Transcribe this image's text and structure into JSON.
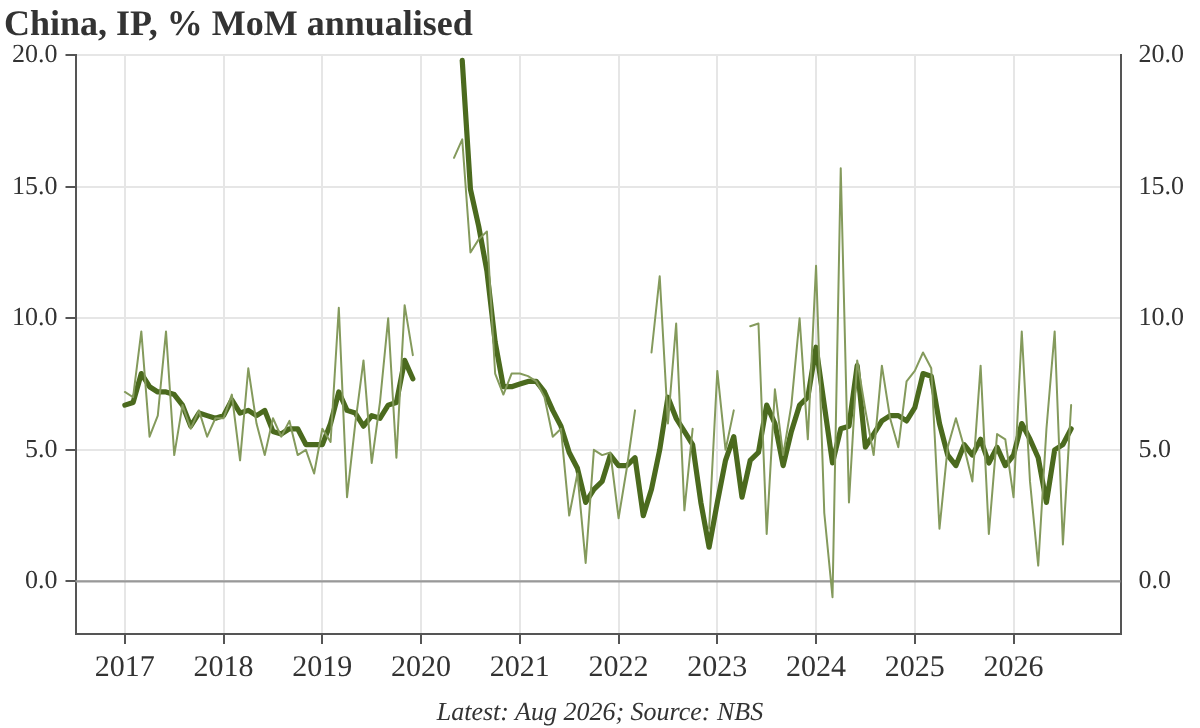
{
  "chart_data": {
    "type": "line",
    "title": "China, IP, % MoM annualised",
    "annotations": [
      "Latest: Aug 2026; Source: NBS"
    ],
    "x": [
      "2017-01",
      "2017-02",
      "2017-03",
      "2017-04",
      "2017-05",
      "2017-06",
      "2017-07",
      "2017-08",
      "2017-09",
      "2017-10",
      "2017-11",
      "2017-12",
      "2018-01",
      "2018-02",
      "2018-03",
      "2018-04",
      "2018-05",
      "2018-06",
      "2018-07",
      "2018-08",
      "2018-09",
      "2018-10",
      "2018-11",
      "2018-12",
      "2019-01",
      "2019-02",
      "2019-03",
      "2019-04",
      "2019-05",
      "2019-06",
      "2019-07",
      "2019-08",
      "2019-09",
      "2019-10",
      "2019-11",
      "2019-12",
      "2020-01",
      "2020-02",
      "2020-03",
      "2020-04",
      "2020-05",
      "2020-06",
      "2020-07",
      "2020-08",
      "2020-09",
      "2020-10",
      "2020-11",
      "2020-12",
      "2021-01",
      "2021-02",
      "2021-03",
      "2021-04",
      "2021-05",
      "2021-06",
      "2021-07",
      "2021-08",
      "2021-09",
      "2021-10",
      "2021-11",
      "2021-12",
      "2022-01",
      "2022-02",
      "2022-03",
      "2022-04",
      "2022-05",
      "2022-06",
      "2022-07",
      "2022-08",
      "2022-09",
      "2022-10",
      "2022-11",
      "2022-12",
      "2023-01",
      "2023-02",
      "2023-03",
      "2023-04",
      "2023-05",
      "2023-06",
      "2023-07",
      "2023-08",
      "2023-09",
      "2023-10",
      "2023-11",
      "2023-12",
      "2024-01",
      "2024-02",
      "2024-03",
      "2024-04",
      "2024-05",
      "2024-06",
      "2024-07",
      "2024-08",
      "2024-09",
      "2024-10",
      "2024-11",
      "2024-12",
      "2025-01",
      "2025-02",
      "2025-03",
      "2025-04",
      "2025-05",
      "2025-06",
      "2025-07",
      "2025-08",
      "2025-09",
      "2025-10",
      "2025-11",
      "2025-12",
      "2026-01",
      "2026-02",
      "2026-03",
      "2026-04",
      "2026-05",
      "2026-06",
      "2026-07",
      "2026-08"
    ],
    "series": [
      {
        "color": "#849a5c",
        "values": [
          7.2,
          7.0,
          9.5,
          5.5,
          6.3,
          9.5,
          4.8,
          6.7,
          5.8,
          6.5,
          5.5,
          6.2,
          6.2,
          7.1,
          4.6,
          8.1,
          6.0,
          4.8,
          6.2,
          5.5,
          6.1,
          4.8,
          5.0,
          4.1,
          5.8,
          5.3,
          10.4,
          3.2,
          6.0,
          8.4,
          4.5,
          6.8,
          10.0,
          4.7,
          10.5,
          8.6,
          null,
          null,
          null,
          null,
          16.1,
          16.8,
          12.5,
          13.0,
          13.3,
          7.9,
          7.1,
          7.9,
          7.9,
          7.8,
          7.6,
          7.0,
          5.5,
          5.8,
          2.5,
          4.1,
          0.7,
          5.0,
          4.8,
          4.9,
          2.4,
          4.3,
          6.5,
          null,
          8.7,
          11.6,
          6.0,
          9.8,
          2.7,
          5.8,
          null,
          2.0,
          8.0,
          5.0,
          6.5,
          null,
          9.7,
          9.8,
          1.8,
          7.3,
          4.8,
          6.7,
          10.0,
          5.4,
          12.0,
          2.6,
          -0.6,
          15.7,
          3.0,
          8.4,
          6.5,
          4.8,
          8.2,
          6.2,
          5.1,
          7.6,
          8.0,
          8.7,
          8.1,
          2.0,
          5.1,
          6.2,
          5.1,
          3.8,
          8.2,
          1.8,
          5.6,
          5.4,
          3.2,
          9.5,
          3.8,
          0.6,
          5.8,
          9.5,
          1.4,
          6.7
        ]
      },
      {
        "color": "#4b6a1e",
        "values": [
          6.7,
          6.8,
          7.9,
          7.4,
          7.2,
          7.2,
          7.1,
          6.7,
          5.9,
          6.4,
          6.3,
          6.2,
          6.3,
          6.9,
          6.4,
          6.5,
          6.3,
          6.5,
          5.7,
          5.6,
          5.8,
          5.8,
          5.2,
          5.2,
          5.2,
          6.0,
          7.2,
          6.5,
          6.4,
          5.9,
          6.3,
          6.2,
          6.7,
          6.8,
          8.4,
          7.7,
          null,
          null,
          null,
          null,
          null,
          19.8,
          14.9,
          13.5,
          11.8,
          9.1,
          7.4,
          7.4,
          7.5,
          7.6,
          7.6,
          7.2,
          6.5,
          5.9,
          4.9,
          4.3,
          3.0,
          3.5,
          3.8,
          4.8,
          4.4,
          4.4,
          4.7,
          2.5,
          3.5,
          5.0,
          7.0,
          6.2,
          5.7,
          5.2,
          3.0,
          1.3,
          3.0,
          4.6,
          5.5,
          3.2,
          4.6,
          4.9,
          6.7,
          6.0,
          4.4,
          5.7,
          6.7,
          7.0,
          8.9,
          6.7,
          4.5,
          5.8,
          5.9,
          8.2,
          5.1,
          5.6,
          6.1,
          6.3,
          6.3,
          6.1,
          6.6,
          7.9,
          7.8,
          6.0,
          4.8,
          4.4,
          5.2,
          4.8,
          5.4,
          4.5,
          5.1,
          4.4,
          4.8,
          6.0,
          5.4,
          4.7,
          3.0,
          5.0,
          5.2,
          5.8
        ]
      }
    ],
    "xlim": [
      "2016-07",
      "2027-02"
    ],
    "xticks": [
      {
        "value": "2017",
        "label": "2017"
      },
      {
        "value": "2018",
        "label": "2018"
      },
      {
        "value": "2019",
        "label": "2019"
      },
      {
        "value": "2020",
        "label": "2020"
      },
      {
        "value": "2021",
        "label": "2021"
      },
      {
        "value": "2022",
        "label": "2022"
      },
      {
        "value": "2023",
        "label": "2023"
      },
      {
        "value": "2024",
        "label": "2024"
      },
      {
        "value": "2025",
        "label": "2025"
      },
      {
        "value": "2026",
        "label": "2026"
      }
    ],
    "ylim": [
      -2,
      20
    ],
    "yticks": [
      {
        "value": 0,
        "label": "0.0"
      },
      {
        "value": 5,
        "label": "5.0"
      },
      {
        "value": 10,
        "label": "10.0"
      },
      {
        "value": 15,
        "label": "15.0"
      },
      {
        "value": 20,
        "label": "20.0"
      }
    ],
    "y2lim": [
      -2,
      20
    ],
    "y2ticks": [
      {
        "value": 0,
        "label": "0.0"
      },
      {
        "value": 5,
        "label": "5.0"
      },
      {
        "value": 10,
        "label": "10.0"
      },
      {
        "value": 15,
        "label": "15.0"
      },
      {
        "value": 20,
        "label": "20.0"
      }
    ],
    "ref_lines": [
      {
        "axis": "y",
        "value": 0,
        "color": "#999999"
      }
    ],
    "grid": true,
    "legend": false,
    "marker": "none",
    "line_style": "solid"
  }
}
